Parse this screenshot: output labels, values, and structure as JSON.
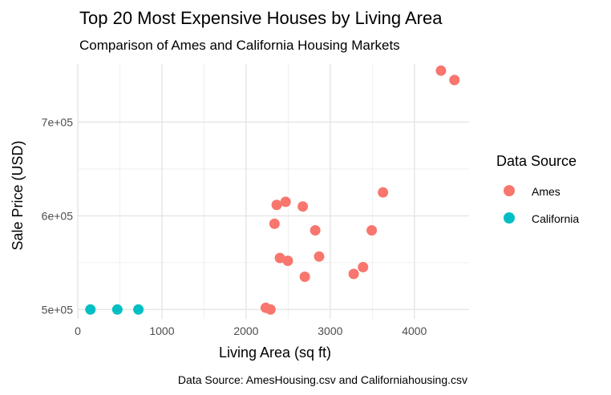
{
  "chart_data": {
    "type": "scatter",
    "title": "Top 20 Most Expensive Houses by Living Area",
    "subtitle": "Comparison of Ames and California Housing Markets",
    "xlabel": "Living Area (sq ft)",
    "ylabel": "Sale Price (USD)",
    "caption": "Data Source: AmesHousing.csv and Californiahousing.csv",
    "legend_title": "Data Source",
    "legend_position": "right",
    "grid": true,
    "xlim": [
      0,
      4650
    ],
    "ylim": [
      490000,
      762000
    ],
    "x_ticks": [
      0,
      1000,
      2000,
      3000,
      4000
    ],
    "x_tick_labels": [
      "0",
      "1000",
      "2000",
      "3000",
      "4000"
    ],
    "y_ticks": [
      500000,
      600000,
      700000
    ],
    "y_tick_labels": [
      "5e+05",
      "6e+05",
      "7e+05"
    ],
    "series": [
      {
        "name": "Ames",
        "color": "#F8766D",
        "points": [
          [
            4316,
            755000
          ],
          [
            4476,
            745000
          ],
          [
            3627,
            625000
          ],
          [
            2470,
            615000
          ],
          [
            2364,
            611657
          ],
          [
            2674,
            610000
          ],
          [
            2338,
            591587
          ],
          [
            2822,
            584500
          ],
          [
            3493,
            584500
          ],
          [
            2868,
            556581
          ],
          [
            2402,
            555000
          ],
          [
            2496,
            552000
          ],
          [
            3390,
            545224
          ],
          [
            3279,
            538000
          ],
          [
            2698,
            535000
          ],
          [
            2234,
            501837
          ],
          [
            2290,
            500067
          ]
        ]
      },
      {
        "name": "California",
        "color": "#00BFC4",
        "points": [
          [
            150,
            500001
          ],
          [
            470,
            500001
          ],
          [
            720,
            500001
          ]
        ]
      }
    ]
  }
}
